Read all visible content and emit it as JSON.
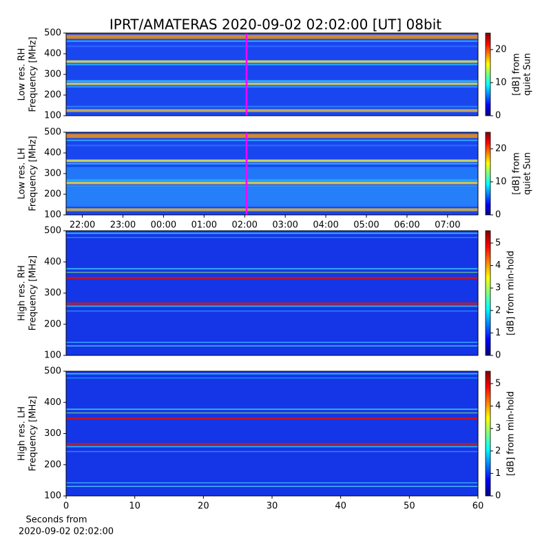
{
  "title": "IPRT/AMATERAS 2020-09-02 02:02:00 [UT]   08bit",
  "chart_data": [
    {
      "type": "heatmap",
      "ylabel": [
        "Low res. RH",
        "Frequency [MHz]"
      ],
      "ylim": [
        100,
        500
      ],
      "yticks": [
        100,
        200,
        300,
        400,
        500
      ],
      "xlim": [
        21.6,
        31.75
      ],
      "colorbar": {
        "label": [
          "[dB] from",
          "quiet Sun"
        ],
        "lim": [
          0,
          25
        ],
        "ticks": [
          0,
          10,
          20
        ]
      }
    },
    {
      "type": "heatmap",
      "ylabel": [
        "Low res. LH",
        "Frequency [MHz]"
      ],
      "ylim": [
        100,
        500
      ],
      "yticks": [
        100,
        200,
        300,
        400,
        500
      ],
      "xlim": [
        21.6,
        31.75
      ],
      "xticks": [
        {
          "value": 22,
          "label": "22:00"
        },
        {
          "value": 23,
          "label": "23:00"
        },
        {
          "value": 24,
          "label": "00:00"
        },
        {
          "value": 25,
          "label": "01:00"
        },
        {
          "value": 26,
          "label": "02:00"
        },
        {
          "value": 27,
          "label": "03:00"
        },
        {
          "value": 28,
          "label": "04:00"
        },
        {
          "value": 29,
          "label": "05:00"
        },
        {
          "value": 30,
          "label": "06:00"
        },
        {
          "value": 31,
          "label": "07:00"
        }
      ],
      "colorbar": {
        "label": [
          "[dB] from",
          "quiet Sun"
        ],
        "lim": [
          0,
          25
        ],
        "ticks": [
          0,
          10,
          20
        ]
      }
    },
    {
      "type": "heatmap",
      "ylabel": [
        "High res. RH",
        "Frequency [MHz]"
      ],
      "ylim": [
        100,
        500
      ],
      "yticks": [
        100,
        200,
        300,
        400,
        500
      ],
      "xlim": [
        0,
        60
      ],
      "colorbar": {
        "label": [
          "[dB] from min-hold"
        ],
        "lim": [
          0,
          5.55
        ],
        "ticks": [
          0,
          1,
          2,
          3,
          4,
          5
        ]
      }
    },
    {
      "type": "heatmap",
      "ylabel": [
        "High res. LH",
        "Frequency [MHz]"
      ],
      "ylim": [
        100,
        500
      ],
      "yticks": [
        100,
        200,
        300,
        400,
        500
      ],
      "xlim": [
        0,
        60
      ],
      "xticks": [
        0,
        10,
        20,
        30,
        40,
        50,
        60
      ],
      "xlabel": [
        "Seconds from",
        "2020-09-02 02:02:00"
      ],
      "colorbar": {
        "label": [
          "[dB] from min-hold"
        ],
        "lim": [
          0,
          5.55
        ],
        "ticks": [
          0,
          1,
          2,
          3,
          4,
          5
        ]
      }
    }
  ]
}
